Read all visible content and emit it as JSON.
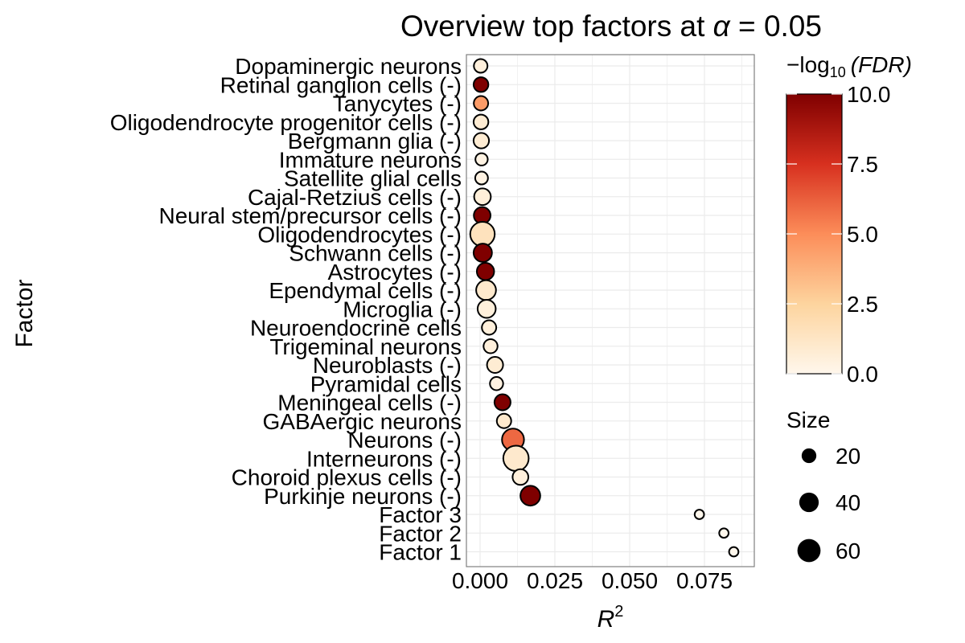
{
  "chart_data": {
    "type": "scatter",
    "title": "Overview top factors at α = 0.05",
    "title_parts": {
      "prefix": "Overview top factors at ",
      "symbol": "α",
      "suffix": " = 0.05"
    },
    "xlabel": "R",
    "xlabel_superscript": "2",
    "ylabel": "Factor",
    "xlim": [
      -0.003,
      0.09
    ],
    "x_ticks": [
      0.0,
      0.025,
      0.05,
      0.075
    ],
    "x_tick_labels": [
      "0.000",
      "0.025",
      "0.050",
      "0.075"
    ],
    "grid": true,
    "categories": [
      "Dopaminergic neurons",
      "Retinal ganglion cells (-)",
      "Tanycytes (-)",
      "Oligodendrocyte progenitor cells (-)",
      "Bergmann glia (-)",
      "Immature neurons",
      "Satellite glial cells",
      "Cajal-Retzius cells (-)",
      "Neural stem/precursor cells (-)",
      "Oligodendrocytes (-)",
      "Schwann cells (-)",
      "Astrocytes (-)",
      "Ependymal cells (-)",
      "Microglia (-)",
      "Neuroendocrine cells",
      "Trigeminal neurons",
      "Neuroblasts (-)",
      "Pyramidal cells",
      "Meningeal cells (-)",
      "GABAergic neurons",
      "Neurons (-)",
      "Interneurons (-)",
      "Choroid plexus cells (-)",
      "Purkinje neurons (-)",
      "Factor 3",
      "Factor 2",
      "Factor 1"
    ],
    "points": [
      {
        "factor": "Dopaminergic neurons",
        "r2": 0.0002,
        "size": 11,
        "neg_log10_fdr": 0.5
      },
      {
        "factor": "Retinal ganglion cells (-)",
        "r2": 0.0003,
        "size": 14,
        "neg_log10_fdr": 10.0
      },
      {
        "factor": "Tanycytes (-)",
        "r2": 0.0003,
        "size": 13,
        "neg_log10_fdr": 4.5
      },
      {
        "factor": "Oligodendrocyte progenitor cells (-)",
        "r2": 0.0003,
        "size": 14,
        "neg_log10_fdr": 0.8
      },
      {
        "factor": "Bergmann glia (-)",
        "r2": 0.0004,
        "size": 16,
        "neg_log10_fdr": 0.8
      },
      {
        "factor": "Immature neurons",
        "r2": 0.0005,
        "size": 8,
        "neg_log10_fdr": 0.3
      },
      {
        "factor": "Satellite glial cells",
        "r2": 0.0005,
        "size": 9,
        "neg_log10_fdr": 0.3
      },
      {
        "factor": "Cajal-Retzius cells (-)",
        "r2": 0.0008,
        "size": 20,
        "neg_log10_fdr": 0.6
      },
      {
        "factor": "Neural stem/precursor cells (-)",
        "r2": 0.0007,
        "size": 20,
        "neg_log10_fdr": 10.0
      },
      {
        "factor": "Oligodendrocytes (-)",
        "r2": 0.0008,
        "size": 55,
        "neg_log10_fdr": 1.5
      },
      {
        "factor": "Schwann cells (-)",
        "r2": 0.0009,
        "size": 26,
        "neg_log10_fdr": 10.0
      },
      {
        "factor": "Astrocytes (-)",
        "r2": 0.0018,
        "size": 22,
        "neg_log10_fdr": 10.0
      },
      {
        "factor": "Ependymal cells (-)",
        "r2": 0.002,
        "size": 32,
        "neg_log10_fdr": 1.0
      },
      {
        "factor": "Microglia (-)",
        "r2": 0.0022,
        "size": 25,
        "neg_log10_fdr": 0.5
      },
      {
        "factor": "Neuroendocrine cells",
        "r2": 0.003,
        "size": 13,
        "neg_log10_fdr": 0.5
      },
      {
        "factor": "Trigeminal neurons",
        "r2": 0.0035,
        "size": 12,
        "neg_log10_fdr": 0.5
      },
      {
        "factor": "Neuroblasts (-)",
        "r2": 0.005,
        "size": 18,
        "neg_log10_fdr": 0.8
      },
      {
        "factor": "Pyramidal cells",
        "r2": 0.0055,
        "size": 10,
        "neg_log10_fdr": 0.4
      },
      {
        "factor": "Meningeal cells (-)",
        "r2": 0.0075,
        "size": 18,
        "neg_log10_fdr": 10.0
      },
      {
        "factor": "GABAergic neurons",
        "r2": 0.008,
        "size": 13,
        "neg_log10_fdr": 1.0
      },
      {
        "factor": "Neurons (-)",
        "r2": 0.011,
        "size": 42,
        "neg_log10_fdr": 6.0
      },
      {
        "factor": "Interneurons (-)",
        "r2": 0.012,
        "size": 60,
        "neg_log10_fdr": 1.0
      },
      {
        "factor": "Choroid plexus cells (-)",
        "r2": 0.0135,
        "size": 17,
        "neg_log10_fdr": 0.5
      },
      {
        "factor": "Purkinje neurons (-)",
        "r2": 0.0168,
        "size": 32,
        "neg_log10_fdr": 10.0
      },
      {
        "factor": "Factor 3",
        "r2": 0.0733,
        "size": 3,
        "neg_log10_fdr": 0.0
      },
      {
        "factor": "Factor 2",
        "r2": 0.0815,
        "size": 3,
        "neg_log10_fdr": 0.0
      },
      {
        "factor": "Factor 1",
        "r2": 0.0848,
        "size": 3,
        "neg_log10_fdr": 0.0
      }
    ],
    "color_scale": {
      "title": "−log",
      "title_subscript": "10",
      "title_suffix": "(FDR)",
      "min": 0.0,
      "max": 10.0,
      "breaks": [
        0.0,
        2.5,
        5.0,
        7.5,
        10.0
      ],
      "break_labels": [
        "0.0",
        "2.5",
        "5.0",
        "7.5",
        "10.0"
      ],
      "colors": [
        "#fff7ec",
        "#fdd49e",
        "#fc8d59",
        "#d7301f",
        "#7f0000"
      ]
    },
    "size_legend": {
      "title": "Size",
      "breaks": [
        20,
        40,
        60
      ],
      "break_labels": [
        "20",
        "40",
        "60"
      ],
      "fill": "#000000"
    },
    "panel_border_color": "#808080",
    "grid_color": "#ebebeb",
    "point_stroke_color": "#000000"
  }
}
